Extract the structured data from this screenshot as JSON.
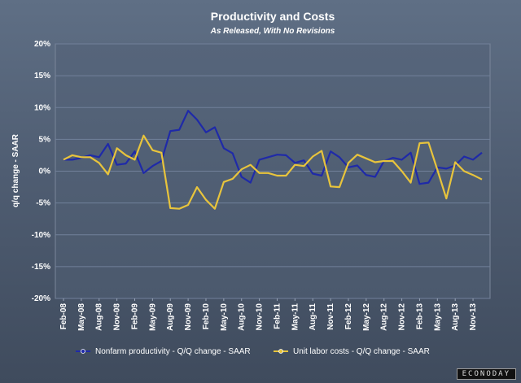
{
  "brand": "ECONODAY",
  "chart_data": {
    "type": "line",
    "title": "Productivity and Costs",
    "subtitle": "As Released, With No Revisions",
    "ylabel": "q/q change - SAAR",
    "xlabel": "",
    "ylim": [
      -20,
      20
    ],
    "yticks": [
      20,
      15,
      10,
      5,
      0,
      -5,
      -10,
      -15,
      -20
    ],
    "ytick_labels": [
      "20%",
      "15%",
      "10%",
      "5%",
      "0%",
      "-5%",
      "-10%",
      "-15%",
      "-20%"
    ],
    "xtick_labels": [
      "Feb-08",
      "May-08",
      "Aug-08",
      "Nov-08",
      "Feb-09",
      "May-09",
      "Aug-09",
      "Nov-09",
      "Feb-10",
      "May-10",
      "Aug-10",
      "Nov-10",
      "Feb-11",
      "May-11",
      "Aug-11",
      "Nov-11",
      "Feb-12",
      "May-12",
      "Aug-12",
      "Nov-12",
      "Feb-13",
      "May-13",
      "Aug-13",
      "Nov-13"
    ],
    "series": [
      {
        "name": "Nonfarm productivity - Q/Q change - SAAR",
        "color": "#1f2aa8",
        "values": [
          1.8,
          1.8,
          2.1,
          2.5,
          2.2,
          4.3,
          1.0,
          1.2,
          3.1,
          -0.3,
          0.8,
          1.6,
          6.3,
          6.5,
          9.5,
          8.1,
          6.1,
          6.9,
          3.6,
          2.8,
          -0.9,
          -1.8,
          1.8,
          2.2,
          2.6,
          2.5,
          1.3,
          1.7,
          -0.4,
          -0.7,
          3.1,
          2.2,
          0.6,
          0.9,
          -0.6,
          -0.9,
          1.6,
          2.1,
          1.8,
          2.9,
          -2.0,
          -1.8,
          0.6,
          0.4,
          0.9,
          2.3,
          1.8,
          2.9
        ]
      },
      {
        "name": "Unit labor costs - Q/Q change - SAAR",
        "color": "#e8c43c",
        "values": [
          1.8,
          2.5,
          2.2,
          2.2,
          1.3,
          -0.5,
          3.6,
          2.5,
          1.8,
          5.6,
          3.3,
          2.9,
          -5.8,
          -5.9,
          -5.3,
          -2.5,
          -4.5,
          -5.9,
          -1.7,
          -1.2,
          0.3,
          1.0,
          -0.3,
          -0.3,
          -0.7,
          -0.7,
          1.0,
          0.8,
          2.3,
          3.2,
          -2.4,
          -2.5,
          1.3,
          2.6,
          2.0,
          1.4,
          1.6,
          1.6,
          0.0,
          -1.8,
          4.4,
          4.5,
          0.2,
          -4.3,
          1.4,
          0.0,
          -0.6,
          -1.3
        ]
      }
    ],
    "legend_position": "bottom"
  }
}
